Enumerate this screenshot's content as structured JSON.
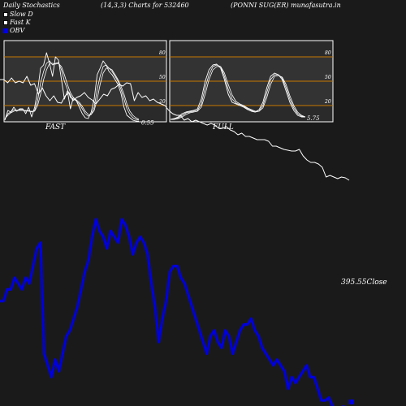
{
  "header": {
    "left": "Daily Stochastics",
    "middle": "(14,3,3) Charts for 532460",
    "right": "(PONNI SUG(ER) munafasutra.in"
  },
  "legend": [
    {
      "label": "Slow  D",
      "color": "#ffffff"
    },
    {
      "label": "Fast K",
      "color": "#ffffff"
    },
    {
      "label": "OBV",
      "color": "#0000dd"
    }
  ],
  "chart_data": [
    {
      "type": "line",
      "panel_label": "FAST",
      "yticks": [
        20,
        50,
        80
      ],
      "ylim": [
        0,
        100
      ],
      "last_value_label": "0.55",
      "series": [
        {
          "values": [
            2,
            14,
            12,
            18,
            13,
            16,
            16,
            10,
            18,
            6,
            18,
            38,
            66,
            70,
            85,
            72,
            56,
            80,
            76,
            52,
            28,
            38,
            16,
            30,
            26,
            18,
            10,
            5,
            4,
            12,
            28,
            58,
            66,
            75,
            70,
            62,
            58,
            52,
            46,
            35,
            18,
            8,
            5,
            2,
            1,
            0.5
          ]
        },
        {
          "values": [
            3,
            10,
            12,
            15,
            14,
            15,
            15,
            13,
            14,
            12,
            14,
            26,
            48,
            62,
            72,
            75,
            70,
            72,
            73,
            64,
            50,
            40,
            30,
            28,
            26,
            22,
            16,
            10,
            7,
            9,
            18,
            40,
            56,
            68,
            70,
            66,
            62,
            56,
            50,
            40,
            28,
            16,
            9,
            5,
            3,
            2
          ]
        },
        {
          "values": [
            4,
            8,
            11,
            13,
            14,
            14,
            14,
            14,
            13,
            13,
            13,
            20,
            34,
            52,
            64,
            72,
            72,
            71,
            72,
            68,
            58,
            46,
            36,
            30,
            27,
            24,
            19,
            13,
            9,
            9,
            14,
            28,
            46,
            60,
            66,
            66,
            64,
            58,
            52,
            44,
            34,
            22,
            13,
            8,
            5,
            3
          ]
        }
      ]
    },
    {
      "type": "line",
      "panel_label": "FULL",
      "yticks": [
        20,
        50,
        80
      ],
      "ylim": [
        0,
        100
      ],
      "last_value_label": "5.75",
      "series": [
        {
          "values": [
            3,
            4,
            6,
            10,
            12,
            13,
            14,
            16,
            28,
            50,
            64,
            70,
            71,
            66,
            52,
            34,
            24,
            22,
            20,
            18,
            15,
            13,
            12,
            15,
            24,
            42,
            56,
            60,
            58,
            52,
            38,
            24,
            14,
            8,
            6,
            6
          ]
        },
        {
          "values": [
            3,
            3,
            5,
            8,
            11,
            12,
            13,
            14,
            22,
            42,
            58,
            68,
            70,
            68,
            56,
            40,
            28,
            23,
            21,
            19,
            16,
            14,
            12,
            13,
            20,
            36,
            52,
            58,
            58,
            54,
            42,
            28,
            17,
            10,
            7,
            6
          ]
        },
        {
          "values": [
            3,
            3,
            4,
            6,
            9,
            11,
            12,
            13,
            18,
            34,
            52,
            64,
            68,
            68,
            60,
            46,
            33,
            25,
            22,
            20,
            17,
            15,
            13,
            13,
            17,
            30,
            46,
            56,
            57,
            55,
            46,
            32,
            20,
            12,
            8,
            6
          ]
        }
      ]
    },
    {
      "type": "line",
      "close_label": "395.55Close",
      "series": [
        {
          "name": "Close",
          "color": "#ffffff",
          "values": [
            422,
            422,
            418,
            424,
            418,
            420,
            418,
            426,
            415,
            417,
            404,
            412,
            402,
            396,
            402,
            394,
            393,
            402,
            406,
            396,
            400,
            402,
            406,
            400,
            397,
            392,
            398,
            404,
            402,
            410,
            412,
            416,
            414,
            418,
            417,
            396,
            406,
            400,
            402,
            396,
            398,
            394,
            392,
            390,
            384,
            380,
            378,
            378,
            372,
            374,
            370,
            372,
            370,
            368,
            366,
            368,
            366,
            362,
            362,
            364,
            360,
            358,
            354,
            356,
            352,
            352,
            350,
            348,
            348,
            348,
            346,
            340,
            340,
            338,
            336,
            335,
            334,
            334,
            336,
            328,
            323,
            320,
            320,
            318,
            314,
            302,
            304,
            302,
            300,
            302,
            301,
            298
          ]
        },
        {
          "name": "OBV",
          "color": "#0000dd",
          "values": [
            398,
            398,
            402,
            402,
            406,
            404,
            402,
            406,
            404,
            410,
            416,
            418,
            380,
            376,
            372,
            378,
            374,
            380,
            386,
            388,
            392,
            396,
            402,
            408,
            412,
            420,
            426,
            422,
            420,
            416,
            422,
            420,
            418,
            426,
            424,
            420,
            414,
            418,
            420,
            418,
            414,
            404,
            396,
            384,
            392,
            398,
            408,
            410,
            410,
            406,
            404,
            400,
            396,
            392,
            388,
            384,
            380,
            386,
            388,
            384,
            382,
            388,
            386,
            380,
            384,
            388,
            390,
            390,
            392,
            388,
            386,
            382,
            380,
            378,
            376,
            378,
            376,
            374,
            368,
            372,
            370,
            372,
            374,
            376,
            372,
            372,
            368,
            364,
            364,
            365,
            362,
            360,
            361,
            362,
            360
          ]
        }
      ]
    }
  ]
}
